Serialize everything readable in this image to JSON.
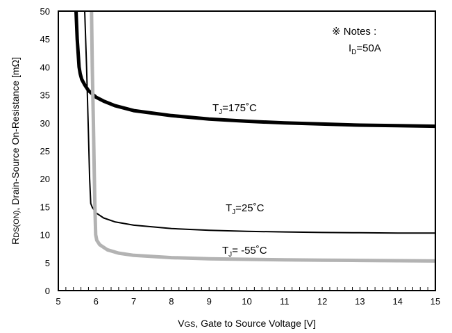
{
  "chart_data": {
    "type": "line",
    "title": "",
    "xlabel": {
      "prefix": "V",
      "sub": "GS",
      "rest": ", Gate to Source Voltage [V]"
    },
    "ylabel": {
      "prefix": "R",
      "sub": "DS(ON)",
      "rest": ", Drain-Source On-Resistance [mΩ]"
    },
    "xlim": [
      5,
      15
    ],
    "ylim": [
      0,
      50
    ],
    "xticks": [
      5,
      6,
      7,
      8,
      9,
      10,
      11,
      12,
      13,
      14,
      15
    ],
    "yticks": [
      0,
      5,
      10,
      15,
      20,
      25,
      30,
      35,
      40,
      45,
      50
    ],
    "x_minor_step": 0.2,
    "grid": false,
    "notes": {
      "line1": "※ Notes :",
      "line2_prefix": "I",
      "line2_sub": "D",
      "line2_rest": "=50A"
    },
    "series": [
      {
        "label_prefix": "T",
        "label_sub": "J",
        "label_rest": "=175˚C",
        "color": "#000000",
        "x": [
          5.47,
          5.5,
          5.55,
          5.58,
          5.62,
          5.7,
          5.8,
          6.0,
          6.2,
          6.5,
          7.0,
          8.0,
          9.0,
          10.0,
          11.0,
          12.0,
          13.0,
          14.0,
          15.0
        ],
        "y": [
          50,
          45,
          40,
          38.8,
          37.8,
          36.8,
          35.8,
          34.6,
          33.9,
          33.1,
          32.2,
          31.3,
          30.7,
          30.3,
          30.0,
          29.8,
          29.6,
          29.5,
          29.4
        ]
      },
      {
        "label_prefix": "T",
        "label_sub": "J",
        "label_rest": "=25˚C",
        "color": "#000000",
        "x": [
          5.7,
          5.75,
          5.8,
          5.83,
          5.86,
          5.9,
          6.0,
          6.2,
          6.5,
          7.0,
          8.0,
          9.0,
          10.0,
          11.0,
          12.0,
          13.0,
          14.0,
          15.0
        ],
        "y": [
          50,
          40,
          28,
          20,
          15.6,
          14.9,
          13.9,
          13.0,
          12.3,
          11.7,
          11.1,
          10.8,
          10.6,
          10.5,
          10.4,
          10.35,
          10.3,
          10.3
        ],
        "label_y": 16.1
      },
      {
        "label_prefix": "T",
        "label_sub": "J",
        "label_rest": "= -55˚C",
        "color": "#b3b3b3",
        "x": [
          5.88,
          5.9,
          5.93,
          5.95,
          5.97,
          5.99,
          6.02,
          6.1,
          6.3,
          6.6,
          7.0,
          8.0,
          9.0,
          10.0,
          11.0,
          12.0,
          13.0,
          14.0,
          15.0
        ],
        "y": [
          50,
          40,
          30,
          22,
          15,
          10,
          9.0,
          8.2,
          7.3,
          6.7,
          6.3,
          5.9,
          5.7,
          5.6,
          5.5,
          5.45,
          5.4,
          5.35,
          5.3
        ]
      }
    ]
  }
}
